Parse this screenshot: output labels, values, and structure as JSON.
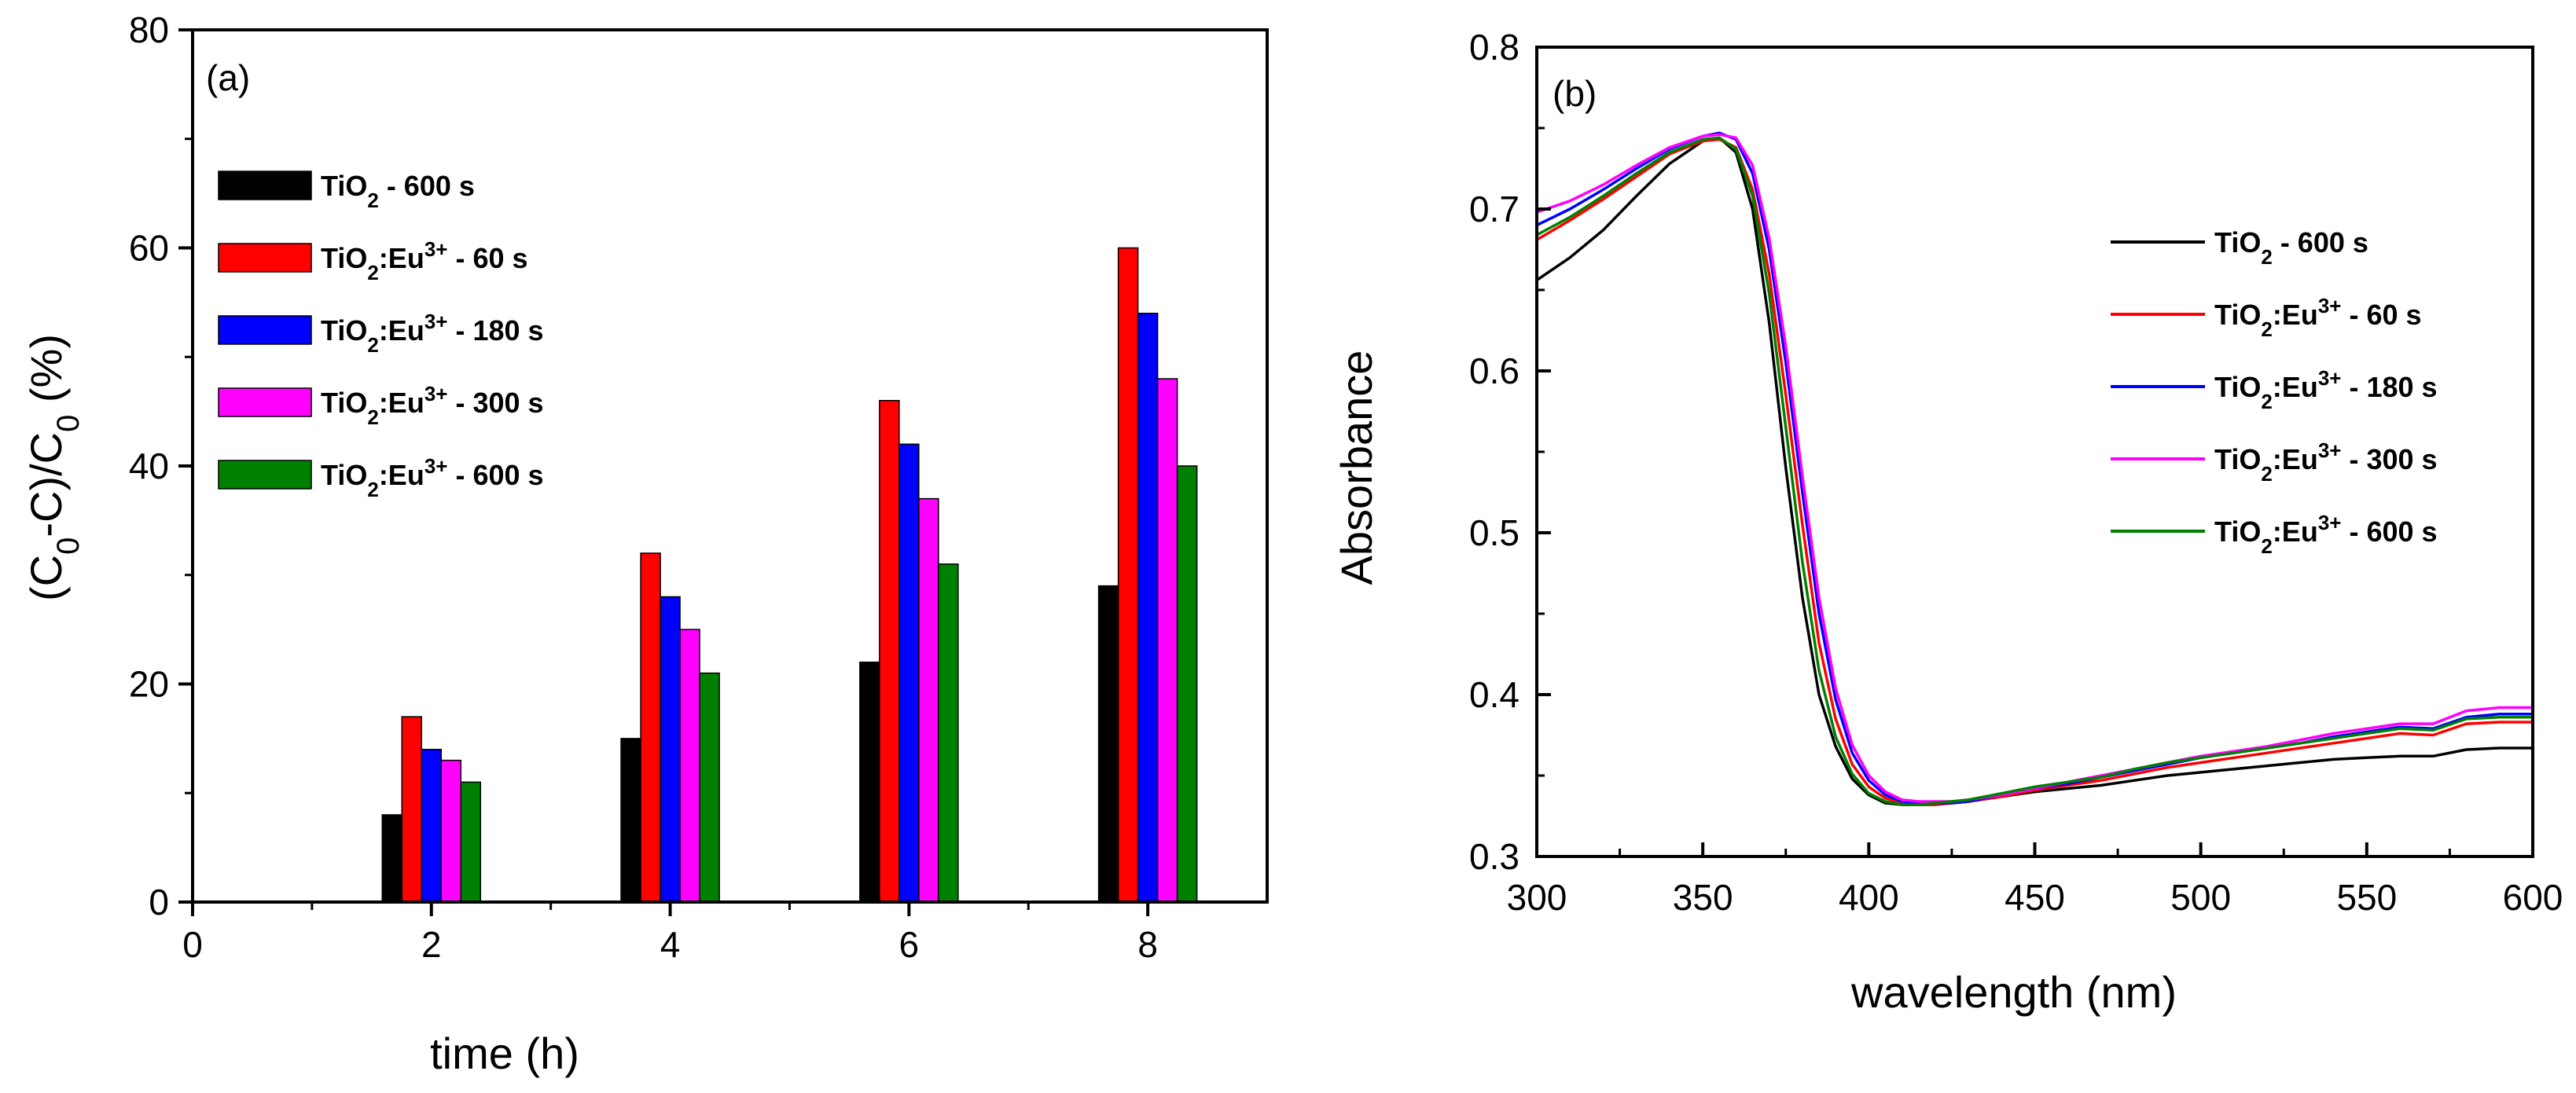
{
  "chart_data": [
    {
      "type": "bar",
      "panel_label": "(a)",
      "xlabel": "time (h)",
      "ylabel": "(C0-C)/C0 (%)",
      "ylabel_parts": {
        "open": "(C",
        "sub1": "0",
        "mid": "-C)/C",
        "sub2": "0",
        "close": " (%)"
      },
      "xlim": [
        0,
        9
      ],
      "ylim": [
        0,
        80
      ],
      "xticks": [
        0,
        2,
        4,
        6,
        8
      ],
      "yticks": [
        0,
        20,
        40,
        60,
        80
      ],
      "categories": [
        2,
        4,
        6,
        8
      ],
      "series": [
        {
          "name": "TiO2 - 600 s",
          "color": "#000000",
          "values": [
            8,
            15,
            22,
            29
          ]
        },
        {
          "name": "TiO2:Eu3+ - 60 s",
          "color": "#ff0000",
          "values": [
            17,
            32,
            46,
            60
          ]
        },
        {
          "name": "TiO2:Eu3+ - 180 s",
          "color": "#0000ff",
          "values": [
            14,
            28,
            42,
            54
          ]
        },
        {
          "name": "TiO2:Eu3+ - 300 s",
          "color": "#ff00ff",
          "values": [
            13,
            25,
            37,
            48
          ]
        },
        {
          "name": "TiO2:Eu3+ - 600 s",
          "color": "#008000",
          "values": [
            11,
            21,
            31,
            40
          ]
        }
      ],
      "legend_position": "upper-left"
    },
    {
      "type": "line",
      "panel_label": "(b)",
      "xlabel": "wavelength (nm)",
      "ylabel": "Absorbance",
      "xlim": [
        300,
        600
      ],
      "ylim": [
        0.3,
        0.8
      ],
      "xticks": [
        300,
        350,
        400,
        450,
        500,
        550,
        600
      ],
      "yticks": [
        0.3,
        0.4,
        0.5,
        0.6,
        0.7,
        0.8
      ],
      "ytick_labels": [
        "0.3",
        "0.4",
        "0.5",
        "0.6",
        "0.7",
        "0.8"
      ],
      "x": [
        300,
        310,
        320,
        330,
        340,
        350,
        355,
        360,
        365,
        370,
        375,
        380,
        385,
        390,
        395,
        400,
        405,
        410,
        415,
        420,
        425,
        430,
        440,
        450,
        460,
        470,
        480,
        490,
        500,
        510,
        520,
        530,
        540,
        550,
        560,
        570,
        580,
        590,
        600
      ],
      "series": [
        {
          "name": "TiO2 - 600 s",
          "color": "#000000",
          "values": [
            0.656,
            0.67,
            0.687,
            0.708,
            0.728,
            0.742,
            0.744,
            0.735,
            0.7,
            0.63,
            0.54,
            0.46,
            0.4,
            0.368,
            0.348,
            0.338,
            0.333,
            0.332,
            0.332,
            0.332,
            0.333,
            0.334,
            0.337,
            0.34,
            0.342,
            0.344,
            0.347,
            0.35,
            0.352,
            0.354,
            0.356,
            0.358,
            0.36,
            0.361,
            0.362,
            0.362,
            0.366,
            0.367,
            0.367
          ]
        },
        {
          "name": "TiO2:Eu3+ - 60 s",
          "color": "#ff0000",
          "values": [
            0.681,
            0.693,
            0.706,
            0.72,
            0.734,
            0.742,
            0.743,
            0.738,
            0.712,
            0.66,
            0.585,
            0.505,
            0.432,
            0.385,
            0.357,
            0.343,
            0.336,
            0.333,
            0.332,
            0.332,
            0.333,
            0.334,
            0.337,
            0.341,
            0.344,
            0.347,
            0.351,
            0.355,
            0.358,
            0.361,
            0.364,
            0.367,
            0.37,
            0.373,
            0.376,
            0.375,
            0.382,
            0.383,
            0.383
          ]
        },
        {
          "name": "TiO2:Eu3+ - 180 s",
          "color": "#0000ff",
          "values": [
            0.69,
            0.7,
            0.712,
            0.725,
            0.737,
            0.745,
            0.747,
            0.743,
            0.722,
            0.675,
            0.605,
            0.525,
            0.45,
            0.397,
            0.364,
            0.347,
            0.338,
            0.334,
            0.333,
            0.333,
            0.333,
            0.334,
            0.338,
            0.342,
            0.345,
            0.349,
            0.353,
            0.357,
            0.361,
            0.364,
            0.367,
            0.37,
            0.374,
            0.377,
            0.38,
            0.379,
            0.386,
            0.388,
            0.388
          ]
        },
        {
          "name": "TiO2:Eu3+ - 300 s",
          "color": "#ff00ff",
          "values": [
            0.698,
            0.705,
            0.715,
            0.727,
            0.738,
            0.745,
            0.746,
            0.744,
            0.727,
            0.682,
            0.615,
            0.535,
            0.46,
            0.404,
            0.369,
            0.35,
            0.34,
            0.335,
            0.334,
            0.334,
            0.334,
            0.335,
            0.338,
            0.342,
            0.346,
            0.35,
            0.354,
            0.358,
            0.362,
            0.365,
            0.368,
            0.372,
            0.376,
            0.379,
            0.382,
            0.382,
            0.39,
            0.392,
            0.392
          ]
        },
        {
          "name": "TiO2:Eu3+ - 600 s",
          "color": "#008000",
          "values": [
            0.684,
            0.695,
            0.708,
            0.722,
            0.735,
            0.743,
            0.744,
            0.737,
            0.708,
            0.648,
            0.565,
            0.482,
            0.415,
            0.374,
            0.351,
            0.339,
            0.334,
            0.332,
            0.332,
            0.333,
            0.334,
            0.335,
            0.339,
            0.343,
            0.346,
            0.349,
            0.354,
            0.358,
            0.361,
            0.364,
            0.367,
            0.37,
            0.373,
            0.376,
            0.379,
            0.378,
            0.385,
            0.386,
            0.386
          ]
        }
      ],
      "legend_position": "right"
    }
  ],
  "legend_entries": [
    {
      "base": "TiO",
      "sub": "2",
      "sep": "",
      "sup": "",
      "tail": " - 600 s"
    },
    {
      "base": "TiO",
      "sub": "2",
      "sep": ":Eu",
      "sup": "3+",
      "tail": " - 60 s"
    },
    {
      "base": "TiO",
      "sub": "2",
      "sep": ":Eu",
      "sup": "3+",
      "tail": " - 180 s"
    },
    {
      "base": "TiO",
      "sub": "2",
      "sep": ":Eu",
      "sup": "3+",
      "tail": " - 300 s"
    },
    {
      "base": "TiO",
      "sub": "2",
      "sep": ":Eu",
      "sup": "3+",
      "tail": " - 600 s"
    }
  ]
}
